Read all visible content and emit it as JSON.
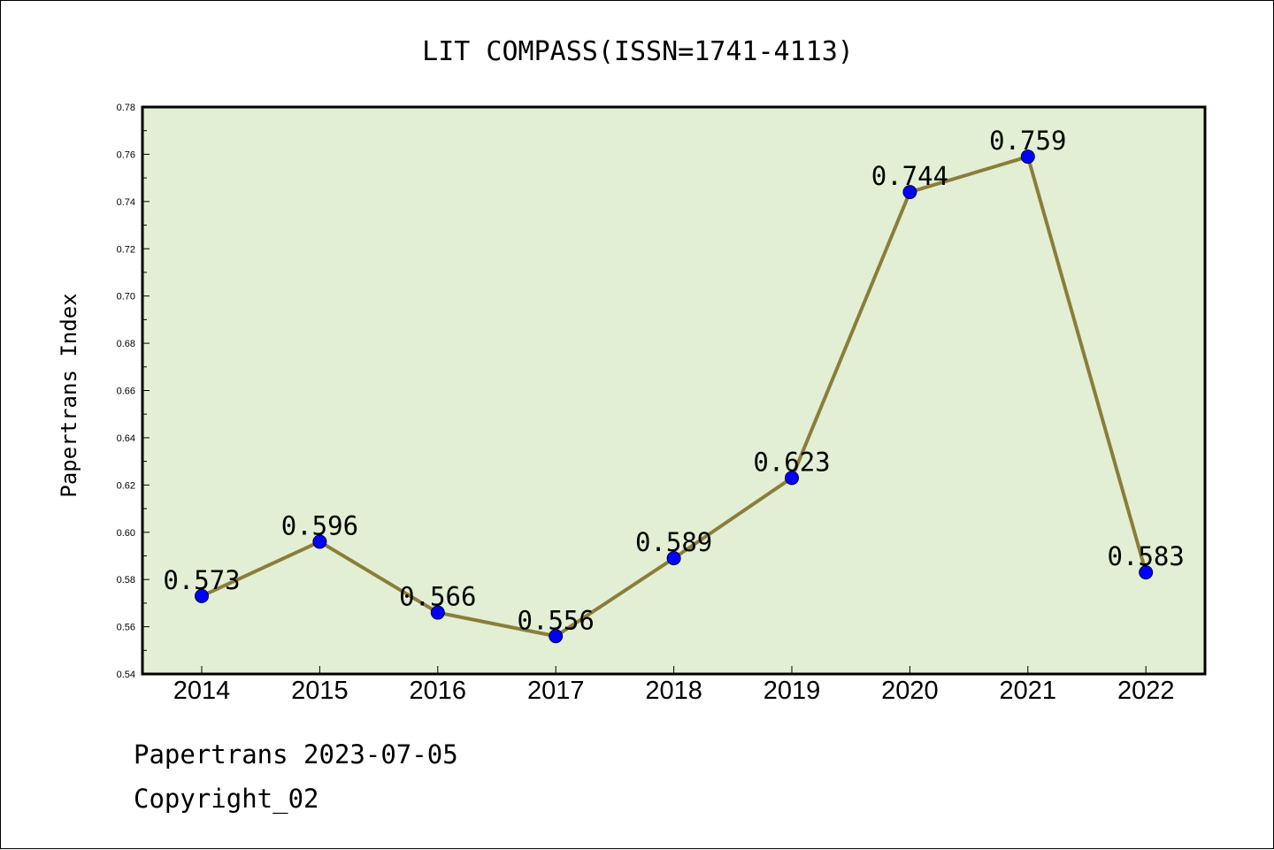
{
  "chart_data": {
    "type": "line",
    "title": "LIT COMPASS(ISSN=1741-4113)",
    "xlabel": "",
    "ylabel": "Papertrans Index",
    "categories": [
      "2014",
      "2015",
      "2016",
      "2017",
      "2018",
      "2019",
      "2020",
      "2021",
      "2022"
    ],
    "series": [
      {
        "values": [
          0.573,
          0.596,
          0.566,
          0.556,
          0.589,
          0.623,
          0.744,
          0.759,
          0.583
        ],
        "labels": [
          "0.573",
          "0.596",
          "0.566",
          "0.556",
          "0.589",
          "0.623",
          "0.744",
          "0.759",
          "0.583"
        ]
      }
    ],
    "ylim": [
      0.54,
      0.78
    ],
    "yticks": [
      "0.54",
      "0.56",
      "0.58",
      "0.60",
      "0.62",
      "0.64",
      "0.66",
      "0.68",
      "0.70",
      "0.72",
      "0.74",
      "0.76",
      "0.78"
    ],
    "grid": false,
    "legend": "none",
    "colors": {
      "plot_background": "#e2efd4",
      "line": "#8b7d3a",
      "marker": "#0000ff"
    }
  },
  "footer": {
    "line1": "Papertrans 2023-07-05",
    "line2": "Copyright_02"
  }
}
